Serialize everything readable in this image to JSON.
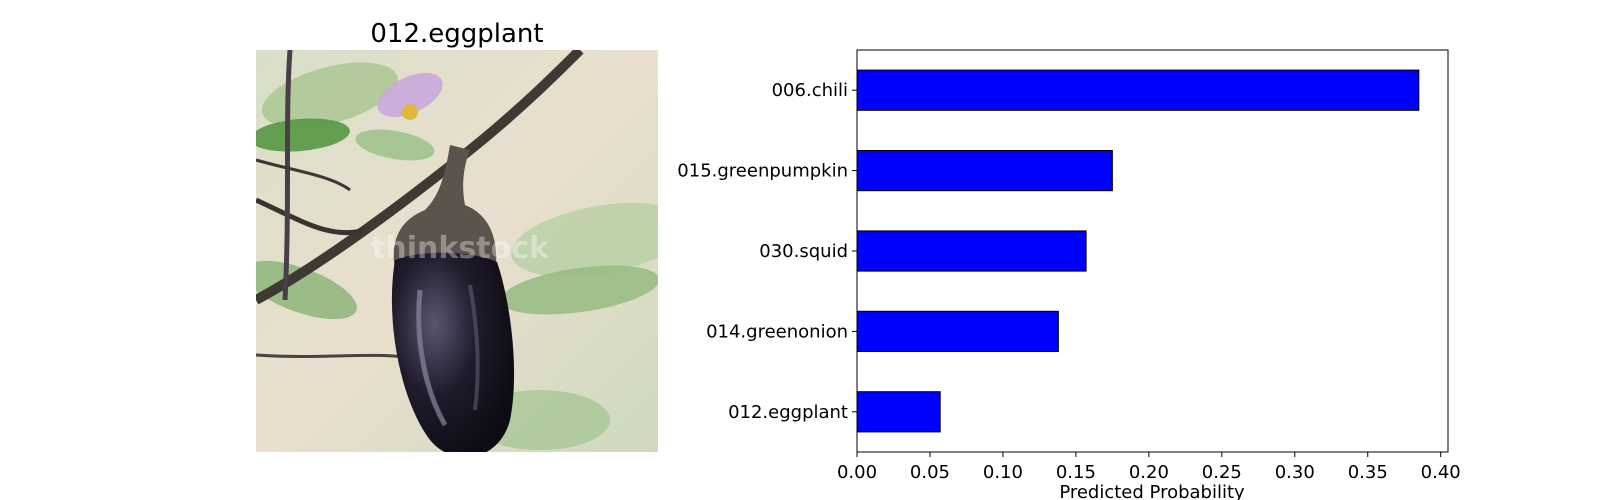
{
  "image_panel": {
    "title": "012.eggplant",
    "watermark": "thinkstock",
    "colors": {
      "background": "#e6dccb",
      "leaf": "#7fae6a",
      "stem": "#4a4038",
      "eggplant_body": "#1b1826",
      "eggplant_highlight": "#7d7a92",
      "flower": "#c4a6d8"
    }
  },
  "chart_data": {
    "type": "bar",
    "orientation": "horizontal",
    "categories": [
      "006.chili",
      "015.greenpumpkin",
      "030.squid",
      "014.greenonion",
      "012.eggplant"
    ],
    "values": [
      0.385,
      0.175,
      0.157,
      0.138,
      0.057
    ],
    "title": "",
    "xlabel": "Predicted Probability",
    "ylabel": "",
    "xlim": [
      0,
      0.405
    ],
    "xticks": [
      "0.00",
      "0.05",
      "0.10",
      "0.15",
      "0.20",
      "0.25",
      "0.30",
      "0.35",
      "0.40"
    ],
    "grid": false,
    "legend": "none",
    "bar_color": "#0000ff",
    "edge_color": "#000000"
  }
}
